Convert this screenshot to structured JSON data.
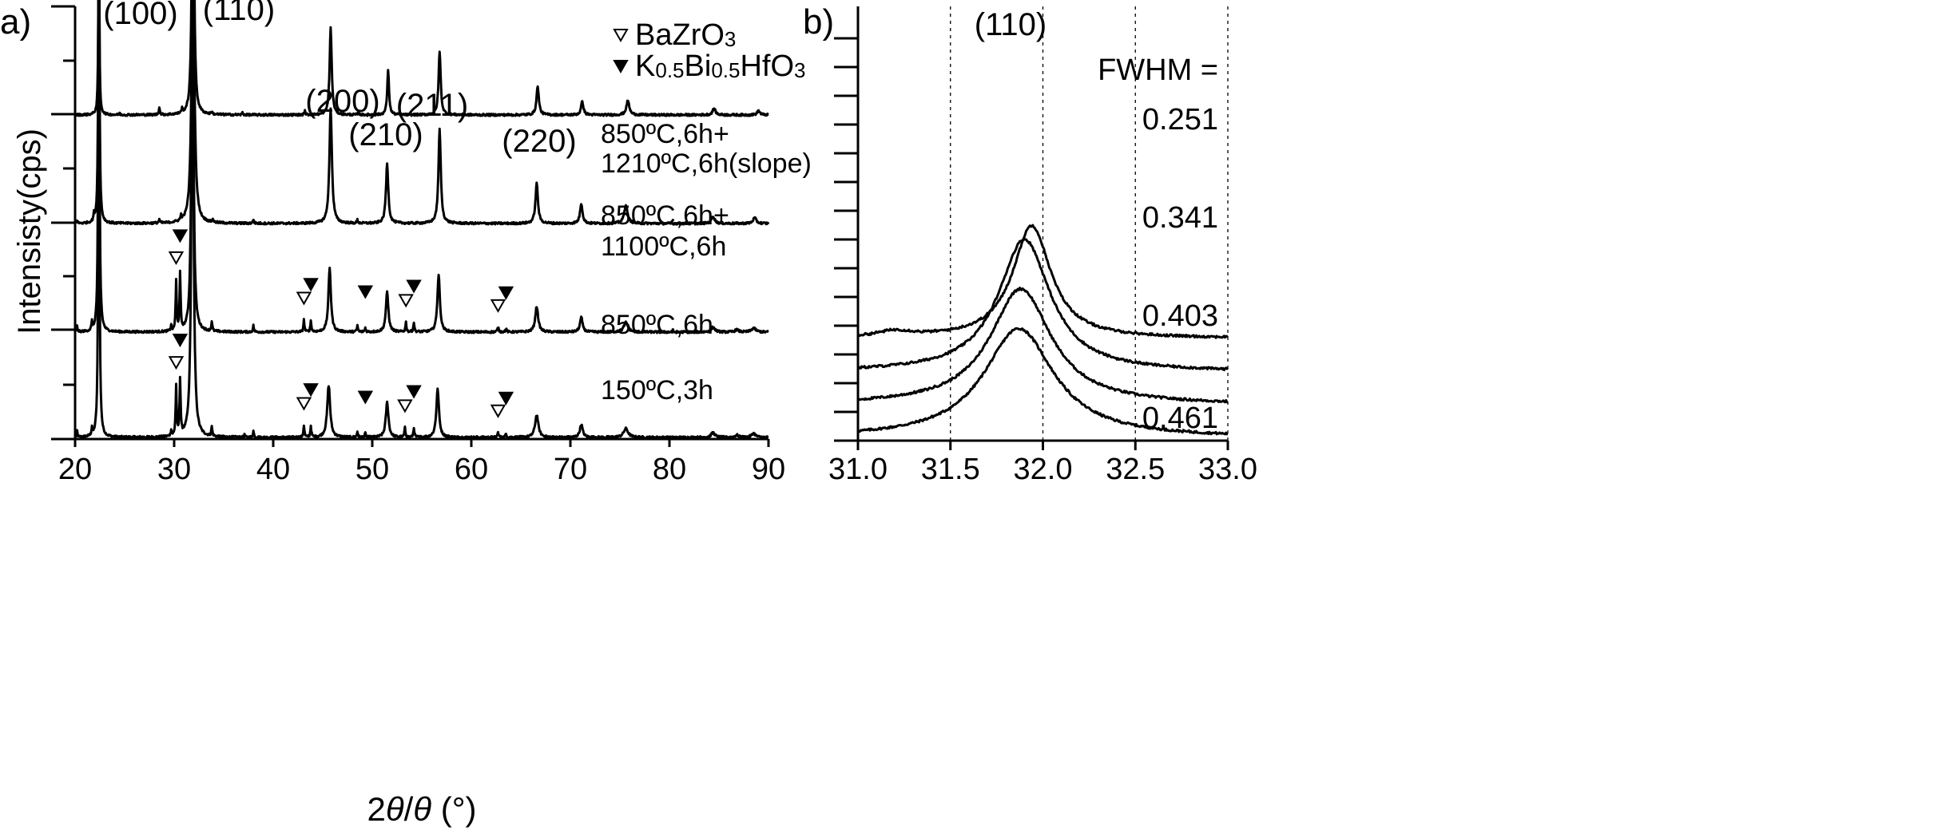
{
  "chart_data": [
    {
      "panel_label": "a)",
      "type": "line",
      "title": "",
      "xlabel_parts": [
        "2",
        "θ",
        "/",
        "θ",
        " (°)"
      ],
      "ylabel": "Intensisty(cps)",
      "xlim": [
        20,
        90
      ],
      "xticks": [
        "20",
        "30",
        "40",
        "50",
        "60",
        "70",
        "80",
        "90"
      ],
      "grid": false,
      "peak_indices": [
        {
          "label": "(100)",
          "x": 22.4
        },
        {
          "label": "(110)",
          "x": 31.9
        },
        {
          "label": "(200)",
          "x": 45.8
        },
        {
          "label": "(210)",
          "x": 51.5
        },
        {
          "label": "(211)",
          "x": 56.8
        },
        {
          "label": "(220)",
          "x": 66.6
        }
      ],
      "legend": {
        "placement": "top-right",
        "entries": [
          {
            "symbol": "open-triangle",
            "label_parts": [
              "BaZrO",
              "3"
            ]
          },
          {
            "symbol": "filled-triangle",
            "label_parts": [
              "K",
              "0.5",
              "Bi",
              "0.5",
              "HfO",
              "3"
            ]
          }
        ]
      },
      "series": [
        {
          "name": "150ºC,3h",
          "label_lines": [
            "150ºC,3h"
          ],
          "offset": 0,
          "peaks": [
            [
              20.2,
              8,
              0.1
            ],
            [
              21.7,
              10,
              0.1
            ],
            [
              22.4,
              520,
              0.14
            ],
            [
              29.7,
              8,
              0.1
            ],
            [
              30.2,
              62,
              0.12
            ],
            [
              30.6,
              70,
              0.12
            ],
            [
              31.85,
              555,
              0.25
            ],
            [
              33.8,
              12,
              0.12
            ],
            [
              37.1,
              3,
              0.1
            ],
            [
              38.0,
              8,
              0.12
            ],
            [
              43.1,
              15,
              0.12
            ],
            [
              43.8,
              14,
              0.12
            ],
            [
              45.6,
              65,
              0.35
            ],
            [
              48.5,
              7,
              0.12
            ],
            [
              49.3,
              5,
              0.12
            ],
            [
              51.5,
              44,
              0.32
            ],
            [
              53.3,
              12,
              0.12
            ],
            [
              54.2,
              12,
              0.12
            ],
            [
              56.6,
              60,
              0.32
            ],
            [
              62.7,
              6,
              0.15
            ],
            [
              63.5,
              4,
              0.15
            ],
            [
              66.6,
              28,
              0.4
            ],
            [
              71.1,
              16,
              0.35
            ],
            [
              75.6,
              11,
              0.55
            ],
            [
              84.4,
              6,
              0.45
            ],
            [
              86.8,
              3,
              0.4
            ],
            [
              88.5,
              5,
              0.5
            ]
          ],
          "open_markers": [
            30.2,
            43.1,
            53.3,
            62.7
          ],
          "filled_markers": [
            30.6,
            43.8,
            49.3,
            54.2,
            63.5
          ]
        },
        {
          "name": "850ºC,6h",
          "label_lines": [
            "850ºC,6h"
          ],
          "offset": 132,
          "peaks": [
            [
              20.2,
              8,
              0.1
            ],
            [
              21.7,
              10,
              0.1
            ],
            [
              22.4,
              520,
              0.14
            ],
            [
              29.7,
              8,
              0.1
            ],
            [
              30.2,
              62,
              0.12
            ],
            [
              30.6,
              70,
              0.12
            ],
            [
              31.85,
              540,
              0.22
            ],
            [
              33.8,
              12,
              0.12
            ],
            [
              38.0,
              8,
              0.12
            ],
            [
              43.1,
              15,
              0.12
            ],
            [
              43.8,
              14,
              0.12
            ],
            [
              45.7,
              80,
              0.3
            ],
            [
              48.5,
              8,
              0.12
            ],
            [
              49.3,
              5,
              0.12
            ],
            [
              51.5,
              50,
              0.3
            ],
            [
              53.4,
              12,
              0.12
            ],
            [
              54.2,
              12,
              0.12
            ],
            [
              56.7,
              72,
              0.3
            ],
            [
              62.7,
              6,
              0.15
            ],
            [
              63.5,
              4,
              0.15
            ],
            [
              66.6,
              32,
              0.35
            ],
            [
              71.1,
              18,
              0.32
            ],
            [
              75.6,
              12,
              0.5
            ],
            [
              84.4,
              6,
              0.45
            ],
            [
              86.8,
              3,
              0.4
            ],
            [
              88.5,
              5,
              0.5
            ]
          ],
          "open_markers": [
            30.2,
            43.1,
            53.4,
            62.7
          ],
          "filled_markers": [
            30.6,
            43.8,
            49.3,
            54.2,
            63.5
          ]
        },
        {
          "name": "850ºC,6h+1100ºC,6h",
          "label_lines": [
            "850ºC,6h+",
            "1100ºC,6h"
          ],
          "offset": 268,
          "peaks": [
            [
              20.2,
              4,
              0.1
            ],
            [
              21.9,
              8,
              0.1
            ],
            [
              22.4,
              445,
              0.13
            ],
            [
              28.5,
              5,
              0.12
            ],
            [
              30.7,
              6,
              0.12
            ],
            [
              31.9,
              400,
              0.3
            ],
            [
              33.9,
              4,
              0.12
            ],
            [
              38.0,
              5,
              0.12
            ],
            [
              45.8,
              145,
              0.3
            ],
            [
              48.5,
              4,
              0.12
            ],
            [
              51.5,
              75,
              0.28
            ],
            [
              56.8,
              118,
              0.28
            ],
            [
              66.6,
              50,
              0.3
            ],
            [
              71.1,
              25,
              0.3
            ],
            [
              75.6,
              23,
              0.4
            ],
            [
              84.4,
              9,
              0.4
            ],
            [
              88.6,
              7,
              0.4
            ]
          ],
          "open_markers": [],
          "filled_markers": []
        },
        {
          "name": "850ºC,6h+1210ºC,6h(slope)",
          "label_lines": [
            "850ºC,6h+",
            "1210ºC,6h(slope)"
          ],
          "offset": 404,
          "peaks": [
            [
              22.4,
              235,
              0.12
            ],
            [
              24.5,
              2,
              0.1
            ],
            [
              28.5,
              10,
              0.12
            ],
            [
              30.8,
              5,
              0.12
            ],
            [
              31.9,
              530,
              0.2
            ],
            [
              33.8,
              3,
              0.12
            ],
            [
              36.9,
              3,
              0.1
            ],
            [
              43.2,
              5,
              0.12
            ],
            [
              45.8,
              110,
              0.25
            ],
            [
              48.6,
              3,
              0.12
            ],
            [
              51.6,
              55,
              0.22
            ],
            [
              56.8,
              80,
              0.25
            ],
            [
              66.7,
              36,
              0.28
            ],
            [
              71.2,
              17,
              0.28
            ],
            [
              75.8,
              18,
              0.35
            ],
            [
              84.5,
              8,
              0.35
            ],
            [
              89.0,
              5,
              0.35
            ]
          ],
          "open_markers": [],
          "filled_markers": []
        }
      ]
    },
    {
      "panel_label": "b)",
      "type": "line",
      "title": "",
      "xlabel": "",
      "ylabel": "",
      "xlim": [
        31.0,
        33.0
      ],
      "xticks": [
        "31.0",
        "31.5",
        "32.0",
        "32.5",
        "33.0"
      ],
      "grid": true,
      "grid_x": [
        31.5,
        32.0,
        32.5,
        33.0
      ],
      "peak_label": {
        "label": "(110)",
        "x": 31.55
      },
      "fwhm_label": "FWHM =",
      "series": [
        {
          "name": "150ºC,3h",
          "fwhm": "0.461",
          "center": 31.87,
          "halfwidth": 0.23,
          "amp": 6.6,
          "offset": 0.0,
          "tail": 0.0
        },
        {
          "name": "850ºC,6h",
          "fwhm": "0.403",
          "center": 31.88,
          "halfwidth": 0.2,
          "amp": 7.0,
          "offset": 2.0,
          "tail": 0.0
        },
        {
          "name": "850ºC,6h+1100ºC,6h",
          "fwhm": "0.341",
          "center": 31.9,
          "halfwidth": 0.17,
          "amp": 8.0,
          "offset": 4.0,
          "tail": 0.0
        },
        {
          "name": "850ºC,6h+1210ºC,6h(slope)",
          "fwhm": "0.251",
          "center": 31.94,
          "halfwidth": 0.125,
          "amp": 6.8,
          "offset": 6.0,
          "tail": 0.35
        }
      ]
    }
  ]
}
